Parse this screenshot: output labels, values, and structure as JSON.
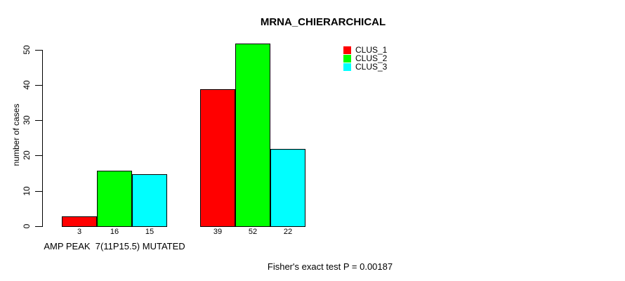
{
  "chart_data": {
    "type": "bar",
    "title": "MRNA_CHIERARCHICAL",
    "ylabel": "number of cases",
    "xlabel": "",
    "ylim": [
      0,
      50
    ],
    "yticks": [
      0,
      10,
      20,
      30,
      40,
      50
    ],
    "grid": false,
    "legend_position": "top-right",
    "categories": [
      "AMP PEAK  7(11P15.5) MUTATED",
      ""
    ],
    "series": [
      {
        "name": "CLUS_1",
        "color": "#FF0000",
        "values": [
          3,
          39
        ]
      },
      {
        "name": "CLUS_2",
        "color": "#00FF00",
        "values": [
          16,
          52
        ]
      },
      {
        "name": "CLUS_3",
        "color": "#00FFFF",
        "values": [
          15,
          22
        ]
      }
    ],
    "bar_value_labels": [
      [
        "3",
        "16",
        "15"
      ],
      [
        "39",
        "52",
        "22"
      ]
    ],
    "footnote": "Fisher's exact test P = 0.00187"
  }
}
